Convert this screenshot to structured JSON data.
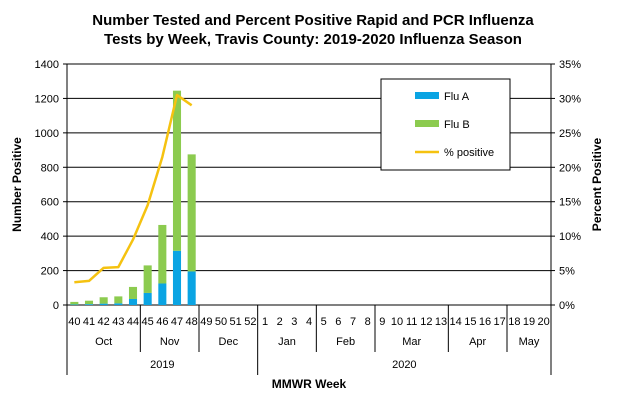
{
  "chart_data": {
    "type": "bar",
    "title_lines": [
      "Number Tested and Percent Positive Rapid and PCR Influenza",
      "Tests by Week, Travis County:  2019-2020 Influenza Season"
    ],
    "xlabel": "MMWR Week",
    "ylabel": "Number Positive",
    "y2label": "Percent Positive",
    "ylim": [
      0,
      1400
    ],
    "y2lim": [
      0,
      35
    ],
    "yticks": [
      "0",
      "200",
      "400",
      "600",
      "800",
      "1000",
      "1200",
      "1400"
    ],
    "y2ticks": [
      "0%",
      "5%",
      "10%",
      "15%",
      "20%",
      "25%",
      "30%",
      "35%"
    ],
    "grid": true,
    "legend_position": "top-right",
    "categories": [
      "40",
      "41",
      "42",
      "43",
      "44",
      "45",
      "46",
      "47",
      "48",
      "49",
      "50",
      "51",
      "52",
      "1",
      "2",
      "3",
      "4",
      "5",
      "6",
      "7",
      "8",
      "9",
      "10",
      "11",
      "12",
      "13",
      "14",
      "15",
      "16",
      "17",
      "18",
      "19",
      "20"
    ],
    "series": [
      {
        "name": "Flu A",
        "kind": "bar",
        "color": "#0AA4E3",
        "values": [
          3,
          5,
          8,
          10,
          35,
          70,
          125,
          315,
          195,
          null,
          null,
          null,
          null,
          null,
          null,
          null,
          null,
          null,
          null,
          null,
          null,
          null,
          null,
          null,
          null,
          null,
          null,
          null,
          null,
          null,
          null,
          null,
          null
        ]
      },
      {
        "name": "Flu B",
        "kind": "bar",
        "color": "#8CCB4F",
        "values": [
          15,
          20,
          37,
          40,
          70,
          160,
          340,
          930,
          680,
          null,
          null,
          null,
          null,
          null,
          null,
          null,
          null,
          null,
          null,
          null,
          null,
          null,
          null,
          null,
          null,
          null,
          null,
          null,
          null,
          null,
          null,
          null,
          null
        ]
      },
      {
        "name": "% positive",
        "kind": "line",
        "axis": "right",
        "color": "#F5C210",
        "values": [
          3.3,
          3.5,
          5.4,
          5.5,
          9.5,
          14.5,
          21.5,
          30.5,
          29.0,
          null,
          null,
          null,
          null,
          null,
          null,
          null,
          null,
          null,
          null,
          null,
          null,
          null,
          null,
          null,
          null,
          null,
          null,
          null,
          null,
          null,
          null,
          null,
          null
        ]
      }
    ],
    "months": [
      {
        "label": "Oct",
        "start": 0,
        "end": 5
      },
      {
        "label": "Nov",
        "start": 5,
        "end": 9
      },
      {
        "label": "Dec",
        "start": 9,
        "end": 13
      },
      {
        "label": "Jan",
        "start": 13,
        "end": 17
      },
      {
        "label": "Feb",
        "start": 17,
        "end": 21
      },
      {
        "label": "Mar",
        "start": 21,
        "end": 26
      },
      {
        "label": "Apr",
        "start": 26,
        "end": 30
      },
      {
        "label": "May",
        "start": 30,
        "end": 33
      }
    ],
    "years": [
      {
        "label": "2019",
        "start": 0,
        "end": 13
      },
      {
        "label": "2020",
        "start": 13,
        "end": 33
      }
    ]
  }
}
